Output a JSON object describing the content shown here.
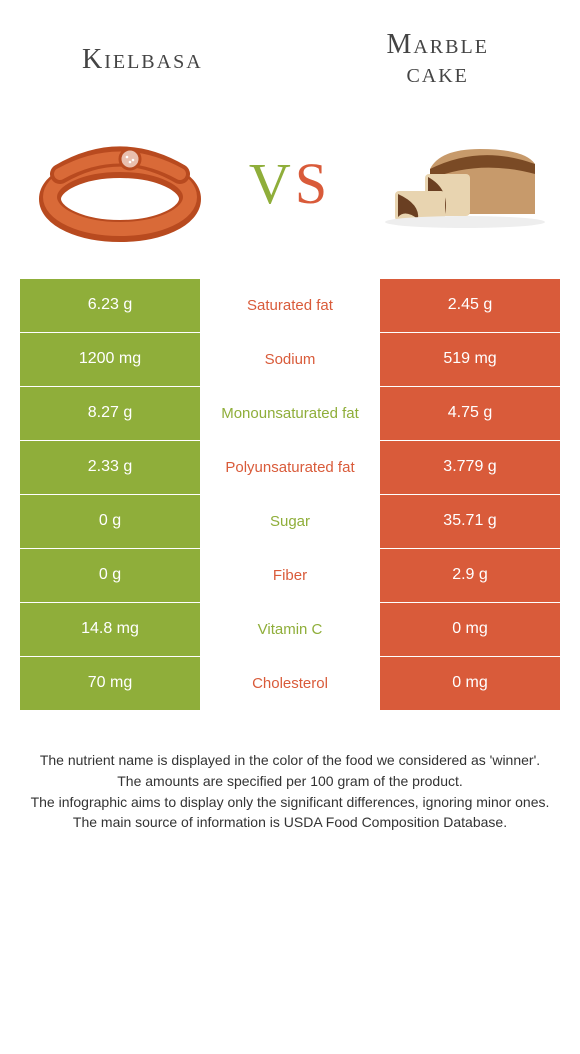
{
  "header": {
    "left_title": "Kielbasa",
    "right_title_line1": "Marble",
    "right_title_line2": "cake",
    "vs_v": "V",
    "vs_s": "S"
  },
  "colors": {
    "green": "#8fae3a",
    "orange": "#d95b3a",
    "background": "#ffffff",
    "text": "#333333"
  },
  "food_images": {
    "left_alt": "kielbasa-sausage",
    "right_alt": "marble-cake-loaf"
  },
  "rows": [
    {
      "left": "6.23 g",
      "name": "Saturated fat",
      "right": "2.45 g",
      "winner": "orange"
    },
    {
      "left": "1200 mg",
      "name": "Sodium",
      "right": "519 mg",
      "winner": "orange"
    },
    {
      "left": "8.27 g",
      "name": "Monounsaturated fat",
      "right": "4.75 g",
      "winner": "green"
    },
    {
      "left": "2.33 g",
      "name": "Polyunsaturated fat",
      "right": "3.779 g",
      "winner": "orange"
    },
    {
      "left": "0 g",
      "name": "Sugar",
      "right": "35.71 g",
      "winner": "green"
    },
    {
      "left": "0 g",
      "name": "Fiber",
      "right": "2.9 g",
      "winner": "orange"
    },
    {
      "left": "14.8 mg",
      "name": "Vitamin C",
      "right": "0 mg",
      "winner": "green"
    },
    {
      "left": "70 mg",
      "name": "Cholesterol",
      "right": "0 mg",
      "winner": "orange"
    }
  ],
  "notes": {
    "n1": "The nutrient name is displayed in the color of the food we considered as 'winner'.",
    "n2": "The amounts are specified per 100 gram of the product.",
    "n3": "The infographic aims to display only the significant differences, ignoring minor ones.",
    "n4": "The main source of information is USDA Food Composition Database."
  }
}
